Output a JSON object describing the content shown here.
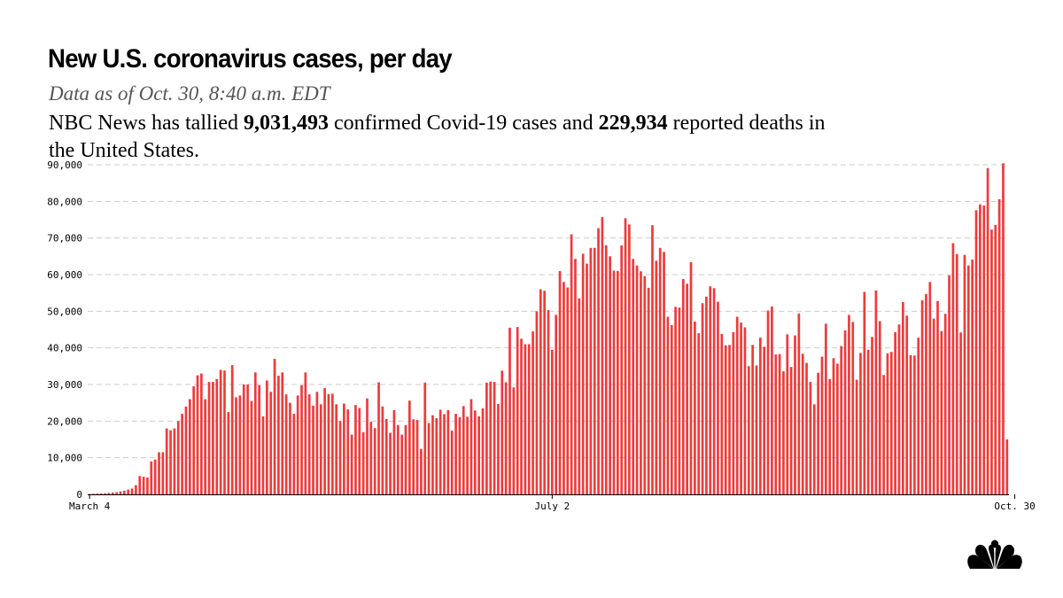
{
  "header": {
    "title": "New U.S. coronavirus cases, per day",
    "subtitle": "Data as of Oct. 30, 8:40 a.m. EDT",
    "summary_prefix": "NBC News has tallied ",
    "summary_cases": "9,031,493",
    "summary_middle": " confirmed Covid-19 cases and ",
    "summary_deaths": "229,934",
    "summary_suffix": " reported deaths in the United States."
  },
  "colors": {
    "bar": "#ee3b3b",
    "grid": "#cccccc",
    "axis": "#000000"
  },
  "logo": {
    "icon": "nbc-peacock-icon"
  },
  "chart_data": {
    "type": "bar",
    "ylim": [
      0,
      90000
    ],
    "yticks": [
      0,
      10000,
      20000,
      30000,
      40000,
      50000,
      60000,
      70000,
      80000,
      90000
    ],
    "ytick_labels": [
      "0",
      "10,000",
      "20,000",
      "30,000",
      "40,000",
      "50,000",
      "60,000",
      "70,000",
      "80,000",
      "90,000"
    ],
    "xtick_labels": [
      {
        "index": 0,
        "label": "March 4"
      },
      {
        "index": 120,
        "label": "July 2"
      },
      {
        "index": 240,
        "label": "Oct. 30"
      }
    ],
    "grid": true,
    "values": [
      100,
      150,
      200,
      250,
      300,
      400,
      500,
      600,
      800,
      1000,
      1300,
      1600,
      2500,
      5000,
      4800,
      4600,
      9000,
      9500,
      11500,
      11500,
      18000,
      17500,
      18000,
      20000,
      22000,
      24000,
      26000,
      29500,
      32500,
      33000,
      26000,
      30700,
      30700,
      31500,
      34000,
      33800,
      22500,
      35300,
      26500,
      27000,
      30000,
      30000,
      25500,
      33300,
      29800,
      21300,
      31100,
      28000,
      37000,
      32400,
      33300,
      27300,
      25000,
      22000,
      27000,
      29800,
      33300,
      27300,
      24200,
      28000,
      24600,
      29000,
      27400,
      27500,
      24600,
      20000,
      24800,
      23200,
      16300,
      24400,
      23600,
      17000,
      26200,
      19800,
      18100,
      30600,
      24000,
      20600,
      16800,
      23000,
      18900,
      16300,
      18900,
      25600,
      20500,
      20300,
      12400,
      30500,
      19500,
      21600,
      20800,
      23100,
      21900,
      23000,
      17400,
      22000,
      21100,
      24100,
      21200,
      26000,
      22900,
      21300,
      23500,
      30500,
      30800,
      30700,
      24700,
      33800,
      30600,
      45500,
      29200,
      45700,
      42500,
      41000,
      41000,
      44500,
      50000,
      56000,
      55600,
      50300,
      39500,
      49000,
      61000,
      58000,
      56500,
      71000,
      64300,
      53500,
      65700,
      63000,
      67300,
      67300,
      72700,
      75700,
      68000,
      65000,
      61100,
      61000,
      68000,
      75400,
      73700,
      64300,
      62500,
      60900,
      59600,
      56400,
      73500,
      63800,
      67300,
      66200,
      48500,
      46200,
      51200,
      51000,
      58800,
      57500,
      63400,
      47200,
      44000,
      52200,
      54000,
      56800,
      56300,
      52600,
      43800,
      40700,
      40800,
      44300,
      48500,
      46900,
      45600,
      35000,
      40800,
      35200,
      42800,
      40300,
      50200,
      51300,
      38200,
      38300,
      33600,
      43700,
      34800,
      43400,
      49400,
      38400,
      35900,
      30700,
      24600,
      33200,
      37600,
      46600,
      31500,
      37200,
      35700,
      40500,
      44800,
      49000,
      47100,
      31300,
      38600,
      55300,
      39500,
      43000,
      55700,
      47300,
      32600,
      38500,
      38900,
      44300,
      46400,
      52500,
      48800,
      38000,
      37900,
      42800,
      53000,
      54700,
      58000,
      48000,
      52800,
      44600,
      49300,
      59800,
      68600,
      65600,
      44200,
      65400,
      62500,
      64100,
      77600,
      79200,
      78900,
      89100,
      72300,
      73600,
      80600,
      90400,
      15000
    ]
  }
}
